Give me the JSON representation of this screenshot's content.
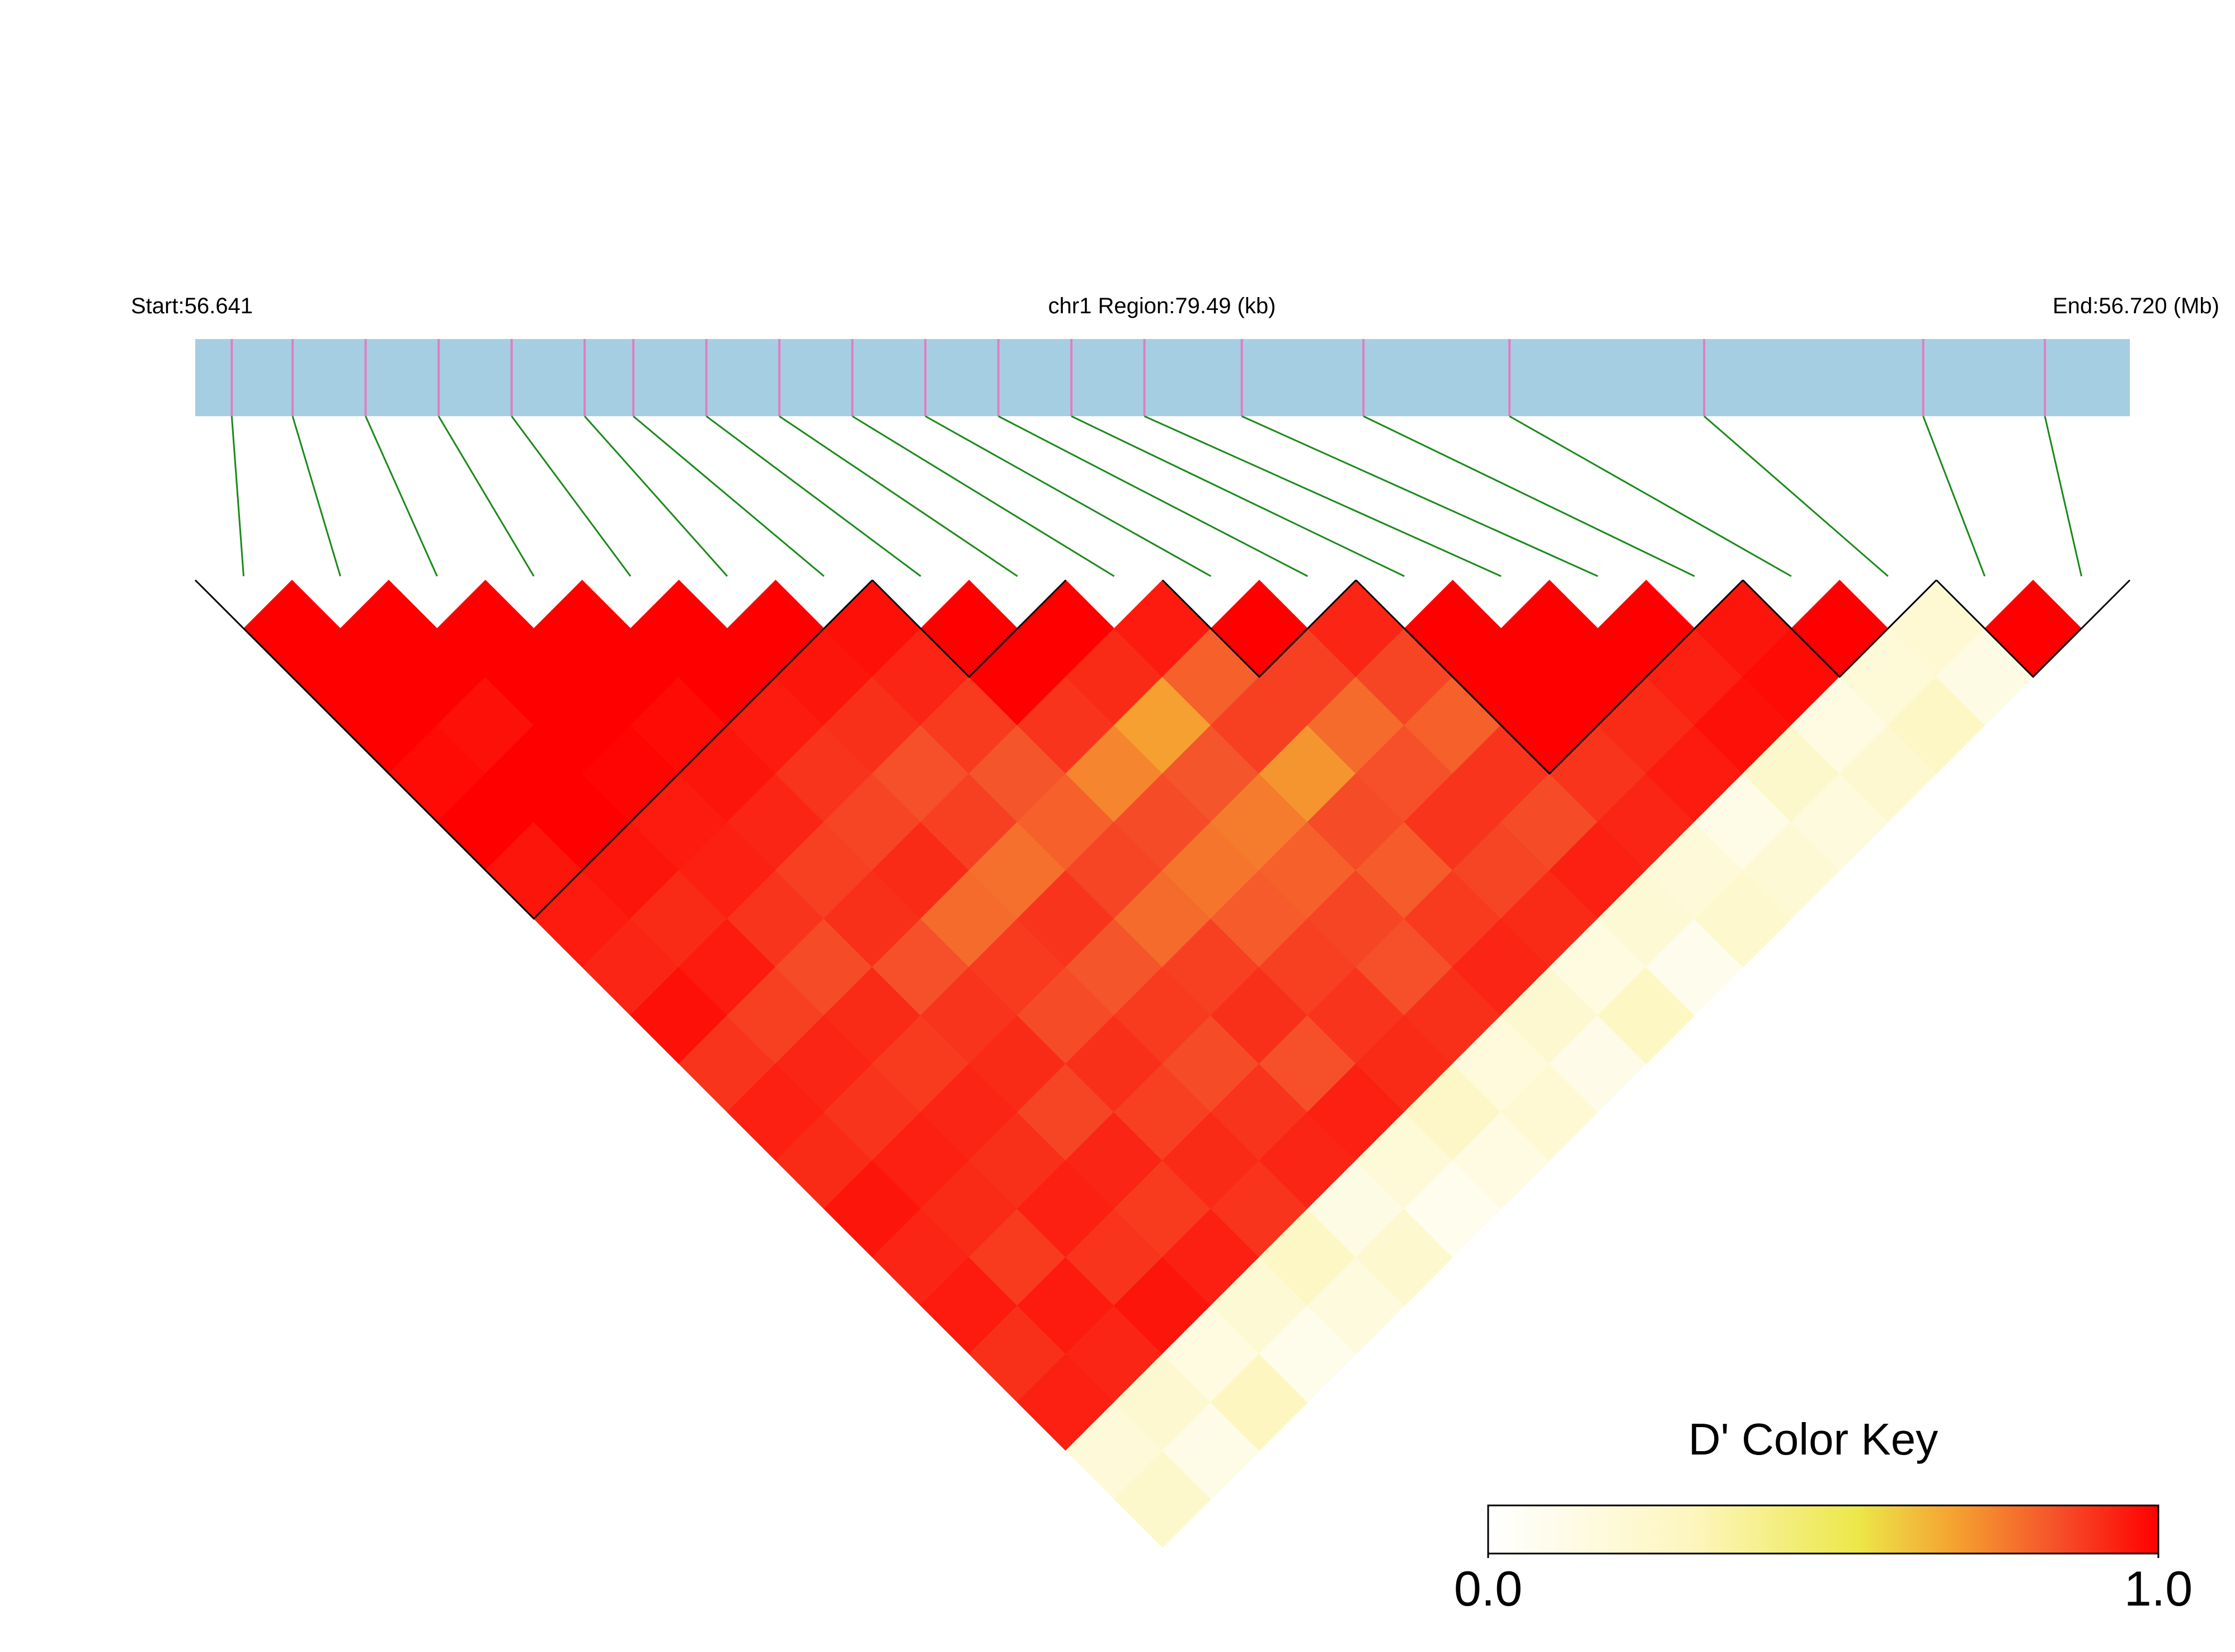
{
  "chart_data": {
    "type": "ld_heatmap",
    "title": "chr1 Region:79.49 (kb)",
    "start_label": "Start:56.641",
    "end_label": "End:56.720 (Mb)",
    "xlim": [
      56.641,
      56.72049
    ],
    "snp_positions": [
      56.6425,
      56.645,
      56.648,
      56.651,
      56.654,
      56.657,
      56.659,
      56.662,
      56.665,
      56.668,
      56.671,
      56.674,
      56.677,
      56.68,
      56.684,
      56.689,
      56.695,
      56.703,
      56.712,
      56.717
    ],
    "dprime": [
      [
        1,
        1,
        1,
        0.98,
        1,
        0.96,
        0.95,
        0.93,
        0.97,
        0.9,
        0.94,
        0.92,
        0.96,
        0.93,
        0.95,
        0.91,
        0.94,
        0.18,
        0.25
      ],
      [
        1,
        1,
        0.97,
        1,
        1,
        0.96,
        0.92,
        0.95,
        0.88,
        0.93,
        0.9,
        0.94,
        0.92,
        0.89,
        0.95,
        0.93,
        0.22,
        0.12
      ],
      [
        1,
        1,
        1,
        0.99,
        0.95,
        0.94,
        0.9,
        0.86,
        0.92,
        0.89,
        0.93,
        0.91,
        0.94,
        0.9,
        0.96,
        0.15,
        0.3
      ],
      [
        1,
        1,
        0.98,
        0.96,
        0.93,
        0.88,
        0.91,
        0.85,
        0.9,
        0.92,
        0.87,
        0.93,
        0.89,
        0.94,
        0.2,
        0.1
      ],
      [
        1,
        1,
        0.95,
        0.9,
        0.87,
        0.92,
        0.8,
        0.89,
        0.86,
        0.91,
        0.88,
        0.92,
        0.9,
        0.27,
        0.16
      ],
      [
        1,
        0.96,
        0.91,
        0.85,
        0.88,
        0.79,
        0.9,
        0.84,
        0.89,
        0.86,
        0.9,
        0.93,
        0.13,
        0.24
      ],
      [
        0.97,
        0.93,
        0.89,
        0.84,
        0.82,
        0.87,
        0.8,
        0.88,
        0.91,
        0.85,
        0.94,
        0.19,
        0.08
      ],
      [
        1,
        1,
        0.9,
        0.75,
        0.86,
        0.78,
        0.83,
        0.88,
        0.9,
        0.92,
        0.26,
        0.14
      ],
      [
        1,
        0.92,
        0.7,
        0.84,
        0.77,
        0.82,
        0.87,
        0.85,
        0.91,
        0.17,
        0.21
      ],
      [
        0.95,
        0.82,
        0.88,
        0.72,
        0.86,
        0.83,
        0.89,
        0.93,
        0.23,
        0.11
      ],
      [
        1,
        0.88,
        0.8,
        0.85,
        0.9,
        0.87,
        0.92,
        0.15,
        0.28
      ],
      [
        0.93,
        0.87,
        0.82,
        0.9,
        0.86,
        0.94,
        0.2,
        0.09
      ],
      [
        1,
        1,
        1,
        0.9,
        0.93,
        0.18,
        0.24
      ],
      [
        1,
        1,
        0.92,
        0.95,
        0.12,
        0.2
      ],
      [
        1,
        0.94,
        0.97,
        0.25,
        0.16
      ],
      [
        0.96,
        0.98,
        0.14,
        0.22
      ],
      [
        1,
        0.19,
        0.27
      ],
      [
        0.21,
        0.13
      ],
      [
        1
      ]
    ],
    "blocks": [
      [
        0,
        6
      ],
      [
        7,
        8
      ],
      [
        10,
        11
      ],
      [
        12,
        15
      ],
      [
        16,
        17
      ],
      [
        18,
        19
      ]
    ],
    "gene_bar_color": "#a6cee3",
    "snp_tick_color": "#e07ec0",
    "connector_color": "#1a8a1a",
    "block_outline_color": "#000000",
    "color_key": {
      "title": "D' Color Key",
      "lim": [
        0,
        1
      ],
      "ticks": [
        {
          "value": 0,
          "label": "0.0"
        },
        {
          "value": 1,
          "label": "1.0"
        }
      ],
      "stops": [
        [
          0,
          "#ffffff"
        ],
        [
          0.3,
          "#fdf6c0"
        ],
        [
          0.55,
          "#ece84a"
        ],
        [
          0.7,
          "#f5a030"
        ],
        [
          0.85,
          "#f5502a"
        ],
        [
          1,
          "#ff0000"
        ]
      ]
    }
  }
}
